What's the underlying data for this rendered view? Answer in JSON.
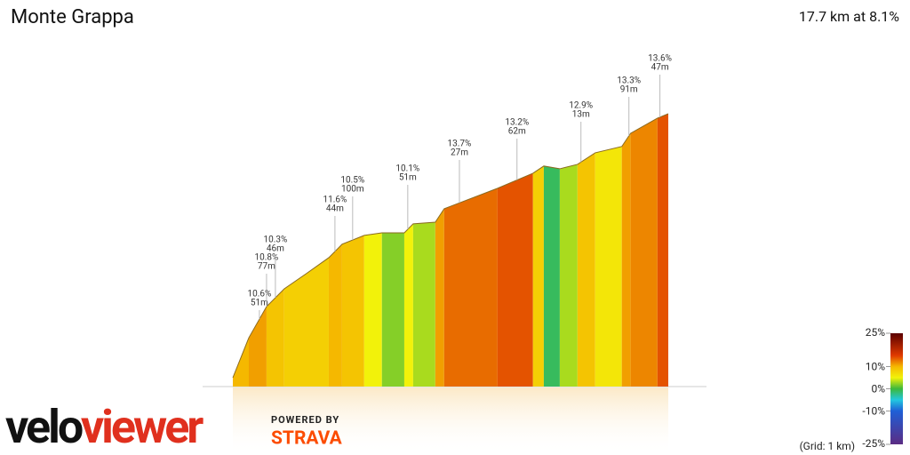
{
  "chart_data": {
    "type": "profile",
    "title": "Monte Grappa",
    "subtitle": "17.7 km at 8.1%",
    "x": [
      0,
      0.65,
      1.37,
      2.09,
      2.98,
      3.9,
      4.44,
      5.34,
      6.06,
      6.97,
      7.33,
      8.23,
      8.59,
      10.76,
      12.2,
      12.64,
      13.29,
      14.01,
      14.73,
      15.81,
      16.17,
      17.26,
      17.7
    ],
    "values": [
      0,
      217,
      386,
      483,
      565,
      652,
      725,
      773,
      787,
      787,
      836,
      845,
      918,
      1029,
      1111,
      1150,
      1135,
      1159,
      1222,
      1256,
      1328,
      1410,
      1434
    ],
    "gradients": [
      10,
      11,
      9,
      8,
      8,
      10,
      9,
      5,
      2,
      5,
      3,
      11,
      13,
      14,
      8,
      -1,
      3,
      9,
      6,
      11,
      12,
      14
    ],
    "annotations": [
      {
        "x": 1.08,
        "text": [
          "10.6%",
          "51m"
        ]
      },
      {
        "x": 1.37,
        "text": [
          "10.8%",
          "77m"
        ]
      },
      {
        "x": 1.73,
        "text": [
          "10.3%",
          "46m"
        ]
      },
      {
        "x": 4.15,
        "text": [
          "11.6%",
          "44m"
        ]
      },
      {
        "x": 4.87,
        "text": [
          "10.5%",
          "100m"
        ]
      },
      {
        "x": 7.11,
        "text": [
          "10.1%",
          "51m"
        ]
      },
      {
        "x": 9.21,
        "text": [
          "13.7%",
          "27m"
        ]
      },
      {
        "x": 11.55,
        "text": [
          "13.2%",
          "62m"
        ]
      },
      {
        "x": 14.15,
        "text": [
          "12.9%",
          "13m"
        ]
      },
      {
        "x": 16.1,
        "text": [
          "13.3%",
          "91m"
        ]
      },
      {
        "x": 17.36,
        "text": [
          "13.6%",
          "47m"
        ]
      }
    ],
    "colorscale": [
      [
        -25,
        "#5b2c83"
      ],
      [
        -10,
        "#1f5fd6"
      ],
      [
        -5,
        "#22c8e0"
      ],
      [
        0,
        "#3cb83c"
      ],
      [
        5,
        "#f2f20a"
      ],
      [
        10,
        "#f5b800"
      ],
      [
        15,
        "#e03a00"
      ],
      [
        25,
        "#5a0000"
      ]
    ],
    "legend_ticks": [
      {
        "value": 25,
        "label": "25%"
      },
      {
        "value": 10,
        "label": "10%"
      },
      {
        "value": 0,
        "label": "0%"
      },
      {
        "value": -10,
        "label": "-10%"
      },
      {
        "value": -25,
        "label": "-25%"
      }
    ],
    "grid_note": "(Grid: 1 km)"
  },
  "footer": {
    "brand_a": "velo",
    "brand_b": "viewer",
    "powered": "POWERED BY",
    "strava": "STRAVA"
  }
}
